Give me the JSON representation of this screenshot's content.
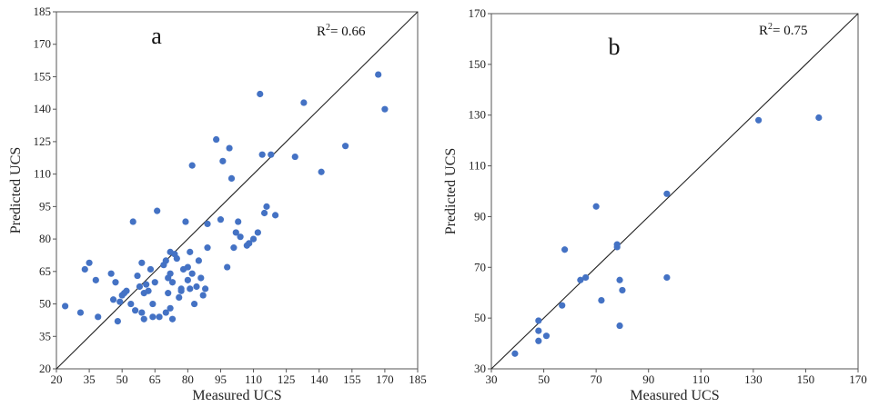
{
  "chart_data": [
    {
      "type": "scatter",
      "panel_label": "a",
      "xlabel": "Measured UCS",
      "ylabel": "Predicted UCS",
      "xlim": [
        20,
        185
      ],
      "ylim": [
        20,
        185
      ],
      "xticks": [
        20,
        35,
        50,
        65,
        80,
        95,
        110,
        125,
        140,
        155,
        170,
        185
      ],
      "yticks": [
        20,
        35,
        50,
        65,
        80,
        95,
        110,
        125,
        140,
        155,
        170,
        185
      ],
      "r2_prefix": "R",
      "r2_sup": "2",
      "r2_suffix": "= 0.66",
      "reference_line": "y = x",
      "point_color": "#4472c4",
      "points": [
        [
          24,
          49
        ],
        [
          31,
          46
        ],
        [
          33,
          66
        ],
        [
          35,
          69
        ],
        [
          38,
          61
        ],
        [
          39,
          44
        ],
        [
          45,
          64
        ],
        [
          46,
          52
        ],
        [
          47,
          60
        ],
        [
          48,
          42
        ],
        [
          49,
          51
        ],
        [
          50,
          54
        ],
        [
          51,
          55
        ],
        [
          52,
          56
        ],
        [
          54,
          50
        ],
        [
          55,
          88
        ],
        [
          56,
          47
        ],
        [
          57,
          63
        ],
        [
          58,
          58
        ],
        [
          59,
          69
        ],
        [
          59,
          46
        ],
        [
          60,
          43
        ],
        [
          60,
          55
        ],
        [
          61,
          59
        ],
        [
          62,
          56
        ],
        [
          63,
          66
        ],
        [
          64,
          44
        ],
        [
          64,
          50
        ],
        [
          65,
          60
        ],
        [
          66,
          93
        ],
        [
          67,
          44
        ],
        [
          69,
          68
        ],
        [
          70,
          70
        ],
        [
          70,
          46
        ],
        [
          71,
          62
        ],
        [
          71,
          55
        ],
        [
          72,
          64
        ],
        [
          72,
          74
        ],
        [
          72,
          48
        ],
        [
          73,
          60
        ],
        [
          73,
          43
        ],
        [
          74,
          73
        ],
        [
          75,
          71
        ],
        [
          76,
          53
        ],
        [
          77,
          56
        ],
        [
          77,
          57
        ],
        [
          78,
          66
        ],
        [
          79,
          88
        ],
        [
          80,
          61
        ],
        [
          80,
          67
        ],
        [
          81,
          74
        ],
        [
          81,
          57
        ],
        [
          82,
          114
        ],
        [
          82,
          64
        ],
        [
          83,
          50
        ],
        [
          84,
          58
        ],
        [
          85,
          70
        ],
        [
          86,
          62
        ],
        [
          87,
          54
        ],
        [
          88,
          57
        ],
        [
          89,
          87
        ],
        [
          89,
          76
        ],
        [
          93,
          126
        ],
        [
          95,
          89
        ],
        [
          96,
          116
        ],
        [
          98,
          67
        ],
        [
          99,
          122
        ],
        [
          100,
          108
        ],
        [
          101,
          76
        ],
        [
          102,
          83
        ],
        [
          103,
          88
        ],
        [
          104,
          81
        ],
        [
          107,
          77
        ],
        [
          108,
          78
        ],
        [
          110,
          80
        ],
        [
          112,
          83
        ],
        [
          113,
          147
        ],
        [
          114,
          119
        ],
        [
          115,
          92
        ],
        [
          116,
          95
        ],
        [
          118,
          119
        ],
        [
          120,
          91
        ],
        [
          129,
          118
        ],
        [
          133,
          143
        ],
        [
          141,
          111
        ],
        [
          152,
          123
        ],
        [
          167,
          156
        ],
        [
          170,
          140
        ]
      ]
    },
    {
      "type": "scatter",
      "panel_label": "b",
      "xlabel": "Measured UCS",
      "ylabel": "Predicted UCS",
      "xlim": [
        30,
        170
      ],
      "ylim": [
        30,
        170
      ],
      "xticks": [
        30,
        50,
        70,
        90,
        110,
        130,
        150,
        170
      ],
      "yticks": [
        30,
        50,
        70,
        90,
        110,
        130,
        150,
        170
      ],
      "r2_prefix": "R",
      "r2_sup": "2",
      "r2_suffix": "= 0.75",
      "reference_line": "y = x",
      "point_color": "#4472c4",
      "points": [
        [
          39,
          36
        ],
        [
          48,
          49
        ],
        [
          48,
          45
        ],
        [
          48,
          41
        ],
        [
          51,
          43
        ],
        [
          57,
          55
        ],
        [
          58,
          77
        ],
        [
          64,
          65
        ],
        [
          66,
          66
        ],
        [
          70,
          94
        ],
        [
          72,
          57
        ],
        [
          78,
          79
        ],
        [
          78,
          78
        ],
        [
          79,
          65
        ],
        [
          79,
          47
        ],
        [
          80,
          61
        ],
        [
          97,
          99
        ],
        [
          97,
          66
        ],
        [
          132,
          128
        ],
        [
          155,
          129
        ]
      ]
    }
  ]
}
